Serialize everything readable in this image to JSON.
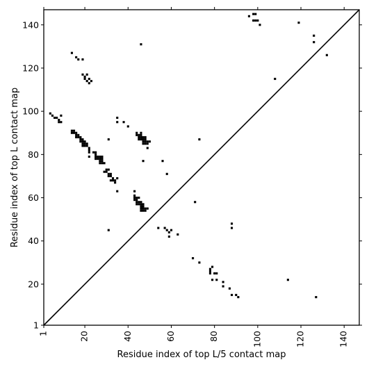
{
  "chart_data": {
    "type": "scatter",
    "title": "",
    "xlabel": "Residue index of top L/5 contact map",
    "ylabel": "Residue index of top L contact map",
    "xlim": [
      1,
      147
    ],
    "ylim": [
      1,
      147
    ],
    "x_ticks": [
      1,
      20,
      40,
      60,
      80,
      100,
      120,
      140
    ],
    "y_ticks": [
      1,
      20,
      40,
      60,
      80,
      100,
      120,
      140
    ],
    "grid": false,
    "marker": "filled square",
    "colors": {
      "points": "#000000",
      "diagonal": "#000000",
      "background": "#ffffff"
    },
    "diagonal": {
      "from": [
        1,
        1
      ],
      "to": [
        147,
        147
      ]
    },
    "points": [
      [
        4,
        99
      ],
      [
        5,
        98
      ],
      [
        6,
        97
      ],
      [
        7,
        97
      ],
      [
        8,
        96
      ],
      [
        8,
        95
      ],
      [
        9,
        95
      ],
      [
        9,
        98
      ],
      [
        14,
        127
      ],
      [
        16,
        125
      ],
      [
        17,
        124
      ],
      [
        19,
        124
      ],
      [
        19,
        117
      ],
      [
        20,
        116
      ],
      [
        21,
        117
      ],
      [
        20,
        115
      ],
      [
        21,
        114
      ],
      [
        22,
        115
      ],
      [
        23,
        114
      ],
      [
        22,
        113
      ],
      [
        14,
        91
      ],
      [
        15,
        91
      ],
      [
        14,
        90
      ],
      [
        15,
        90
      ],
      [
        16,
        90
      ],
      [
        16,
        89
      ],
      [
        17,
        89
      ],
      [
        16,
        88
      ],
      [
        17,
        88
      ],
      [
        18,
        88
      ],
      [
        18,
        87
      ],
      [
        19,
        87
      ],
      [
        18,
        86
      ],
      [
        19,
        86
      ],
      [
        20,
        86
      ],
      [
        19,
        85
      ],
      [
        20,
        85
      ],
      [
        21,
        85
      ],
      [
        19,
        84
      ],
      [
        20,
        84
      ],
      [
        21,
        84
      ],
      [
        22,
        83
      ],
      [
        22,
        82
      ],
      [
        22,
        81
      ],
      [
        22,
        79
      ],
      [
        24,
        81
      ],
      [
        25,
        81
      ],
      [
        25,
        80
      ],
      [
        25,
        79
      ],
      [
        26,
        79
      ],
      [
        27,
        79
      ],
      [
        28,
        79
      ],
      [
        25,
        78
      ],
      [
        26,
        78
      ],
      [
        27,
        78
      ],
      [
        28,
        78
      ],
      [
        27,
        77
      ],
      [
        28,
        77
      ],
      [
        27,
        76
      ],
      [
        28,
        76
      ],
      [
        29,
        76
      ],
      [
        29,
        72
      ],
      [
        30,
        73
      ],
      [
        31,
        73
      ],
      [
        30,
        72
      ],
      [
        31,
        71
      ],
      [
        32,
        71
      ],
      [
        31,
        70
      ],
      [
        32,
        70
      ],
      [
        33,
        69
      ],
      [
        32,
        68
      ],
      [
        33,
        68
      ],
      [
        34,
        68
      ],
      [
        34,
        67
      ],
      [
        35,
        69
      ],
      [
        35,
        63
      ],
      [
        31,
        87
      ],
      [
        31,
        45
      ],
      [
        35,
        97
      ],
      [
        35,
        95
      ],
      [
        38,
        95
      ],
      [
        40,
        93
      ],
      [
        44,
        90
      ],
      [
        46,
        90
      ],
      [
        44,
        89
      ],
      [
        45,
        89
      ],
      [
        46,
        89
      ],
      [
        45,
        88
      ],
      [
        46,
        88
      ],
      [
        47,
        88
      ],
      [
        48,
        88
      ],
      [
        45,
        87
      ],
      [
        46,
        87
      ],
      [
        47,
        87
      ],
      [
        48,
        87
      ],
      [
        47,
        86
      ],
      [
        48,
        86
      ],
      [
        49,
        86
      ],
      [
        50,
        86
      ],
      [
        47,
        85
      ],
      [
        48,
        85
      ],
      [
        49,
        85
      ],
      [
        49,
        83
      ],
      [
        47,
        77
      ],
      [
        43,
        63
      ],
      [
        43,
        61
      ],
      [
        43,
        60
      ],
      [
        44,
        60
      ],
      [
        45,
        60
      ],
      [
        43,
        59
      ],
      [
        44,
        59
      ],
      [
        44,
        58
      ],
      [
        45,
        58
      ],
      [
        46,
        58
      ],
      [
        44,
        57
      ],
      [
        45,
        57
      ],
      [
        46,
        57
      ],
      [
        47,
        57
      ],
      [
        46,
        56
      ],
      [
        47,
        56
      ],
      [
        46,
        55
      ],
      [
        47,
        55
      ],
      [
        48,
        55
      ],
      [
        49,
        55
      ],
      [
        46,
        54
      ],
      [
        47,
        54
      ],
      [
        48,
        54
      ],
      [
        46,
        131
      ],
      [
        54,
        46
      ],
      [
        56,
        77
      ],
      [
        57,
        46
      ],
      [
        58,
        45
      ],
      [
        59,
        44
      ],
      [
        60,
        45
      ],
      [
        58,
        71
      ],
      [
        59,
        42
      ],
      [
        63,
        43
      ],
      [
        71,
        58
      ],
      [
        73,
        87
      ],
      [
        70,
        32
      ],
      [
        73,
        30
      ],
      [
        78,
        27
      ],
      [
        79,
        28
      ],
      [
        78,
        26
      ],
      [
        80,
        25
      ],
      [
        81,
        25
      ],
      [
        78,
        25
      ],
      [
        79,
        22
      ],
      [
        81,
        22
      ],
      [
        84,
        21
      ],
      [
        84,
        19
      ],
      [
        87,
        18
      ],
      [
        88,
        15
      ],
      [
        90,
        15
      ],
      [
        91,
        14
      ],
      [
        88,
        48
      ],
      [
        88,
        46
      ],
      [
        108,
        115
      ],
      [
        114,
        22
      ],
      [
        127,
        14
      ],
      [
        96,
        144
      ],
      [
        98,
        145
      ],
      [
        99,
        145
      ],
      [
        98,
        142
      ],
      [
        99,
        142
      ],
      [
        100,
        142
      ],
      [
        101,
        140
      ],
      [
        119,
        141
      ],
      [
        126,
        135
      ],
      [
        126,
        132
      ],
      [
        132,
        126
      ]
    ]
  }
}
